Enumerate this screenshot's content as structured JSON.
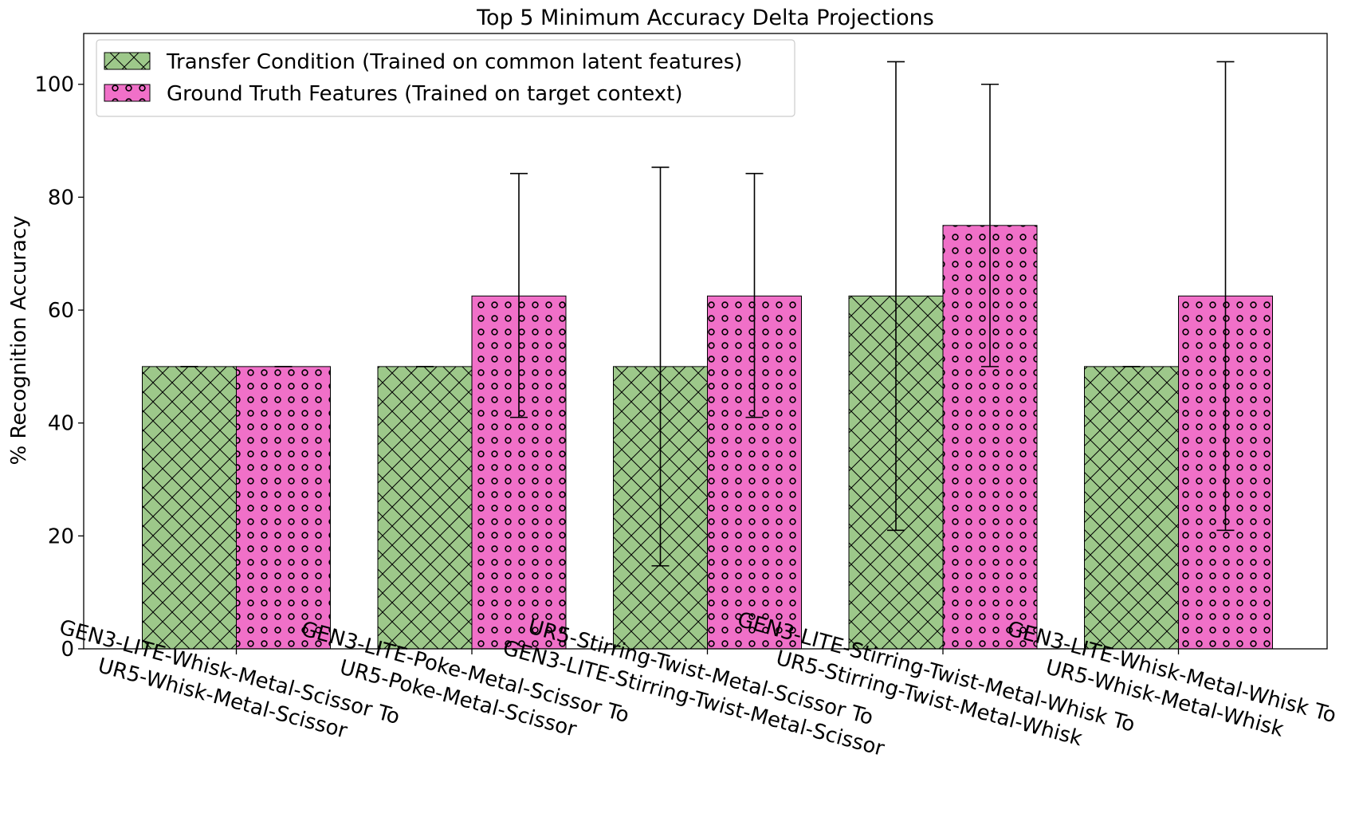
{
  "chart_data": {
    "type": "bar",
    "title": "Top 5 Minimum Accuracy Delta Projections",
    "xlabel": "",
    "ylabel": "% Recognition Accuracy",
    "ylim": [
      0,
      109
    ],
    "yticks": [
      0,
      20,
      40,
      60,
      80,
      100
    ],
    "grid": false,
    "legend_position": "top-left",
    "categories": [
      [
        "GEN3-LITE-Whisk-Metal-Scissor To",
        "UR5-Whisk-Metal-Scissor"
      ],
      [
        "GEN3-LITE-Poke-Metal-Scissor To",
        "UR5-Poke-Metal-Scissor"
      ],
      [
        "UR5-Stirring-Twist-Metal-Scissor To",
        "GEN3-LITE-Stirring-Twist-Metal-Scissor"
      ],
      [
        "GEN3-LITE-Stirring-Twist-Metal-Whisk To",
        "UR5-Stirring-Twist-Metal-Whisk"
      ],
      [
        "GEN3-LITE-Whisk-Metal-Whisk To",
        "UR5-Whisk-Metal-Whisk"
      ]
    ],
    "series": [
      {
        "name": "Transfer Condition (Trained on common latent features)",
        "color": "#9dc88a",
        "pattern": "crosshatch",
        "values": [
          50,
          50,
          50,
          62.5,
          50
        ],
        "error_low": [
          50,
          50,
          14.7,
          21.0,
          50
        ],
        "error_high": [
          50,
          50,
          85.3,
          104.0,
          50
        ]
      },
      {
        "name": "Ground Truth Features (Trained on target context)",
        "color": "#f070c8",
        "pattern": "circles",
        "values": [
          50,
          62.5,
          62.5,
          75,
          62.5
        ],
        "error_low": [
          50,
          41.0,
          41.0,
          50,
          21.0
        ],
        "error_high": [
          50,
          84.2,
          84.2,
          100,
          104.0
        ]
      }
    ]
  }
}
